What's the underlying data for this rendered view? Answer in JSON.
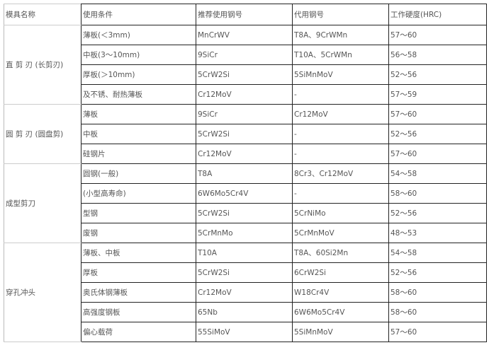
{
  "headers": [
    "模具名称",
    "使用条件",
    "推荐使用钢号",
    "代用钢号",
    "工作硬度(HRC)"
  ],
  "groups": [
    {
      "name": "直 剪 刃 (长剪刃)",
      "rows": [
        [
          "薄板(＜3mm)",
          "MnCrWV",
          "T8A、9CrWMn",
          "57～60"
        ],
        [
          "中板(3～10mm)",
          "9SiCr",
          "T10A、5CrWMn",
          "56～58"
        ],
        [
          "厚板(＞10mm)",
          "5CrW2Si",
          "5SiMnMoV",
          "52～56"
        ],
        [
          "及不锈、耐热薄板",
          "Cr12MoV",
          "-",
          "57～59"
        ]
      ]
    },
    {
      "name": "圆 剪 刃 (圆盘剪)",
      "rows": [
        [
          "薄板",
          "9SiCr",
          "Cr12MoV",
          "57～60"
        ],
        [
          "中板",
          "5CrW2Si",
          "-",
          "52～56"
        ],
        [
          "硅钢片",
          "Cr12MoV",
          "-",
          "57～60"
        ]
      ]
    },
    {
      "name": "成型剪刀",
      "rows": [
        [
          "圆钢(一般)",
          "T8A",
          "8Cr3、Cr12MoV",
          "54～58"
        ],
        [
          "(小型高寿命)",
          "6W6Mo5Cr4V",
          "-",
          "58～60"
        ],
        [
          "型钢",
          "5CrW2Si",
          "5CrNiMo",
          "52～56"
        ],
        [
          "废钢",
          "5CrMnMo",
          "5CrMnMoV",
          "48～53"
        ]
      ]
    },
    {
      "name": "穿孔冲头",
      "rows": [
        [
          "薄板、中板",
          "T10A",
          "T8A、60Si2Mn",
          "54～58"
        ],
        [
          "厚板",
          "5CrW2Si",
          "6CrW2Si",
          "52～56"
        ],
        [
          "奥氏体钢薄板",
          "Cr12MoV",
          "W18Cr4V",
          "58～60"
        ],
        [
          "高强度钢板",
          "65Nb",
          "6W6Mo5Cr4V",
          "58～60"
        ],
        [
          "偏心载荷",
          "55SiMoV",
          "5SiMnMoV",
          "57～60"
        ]
      ]
    }
  ]
}
